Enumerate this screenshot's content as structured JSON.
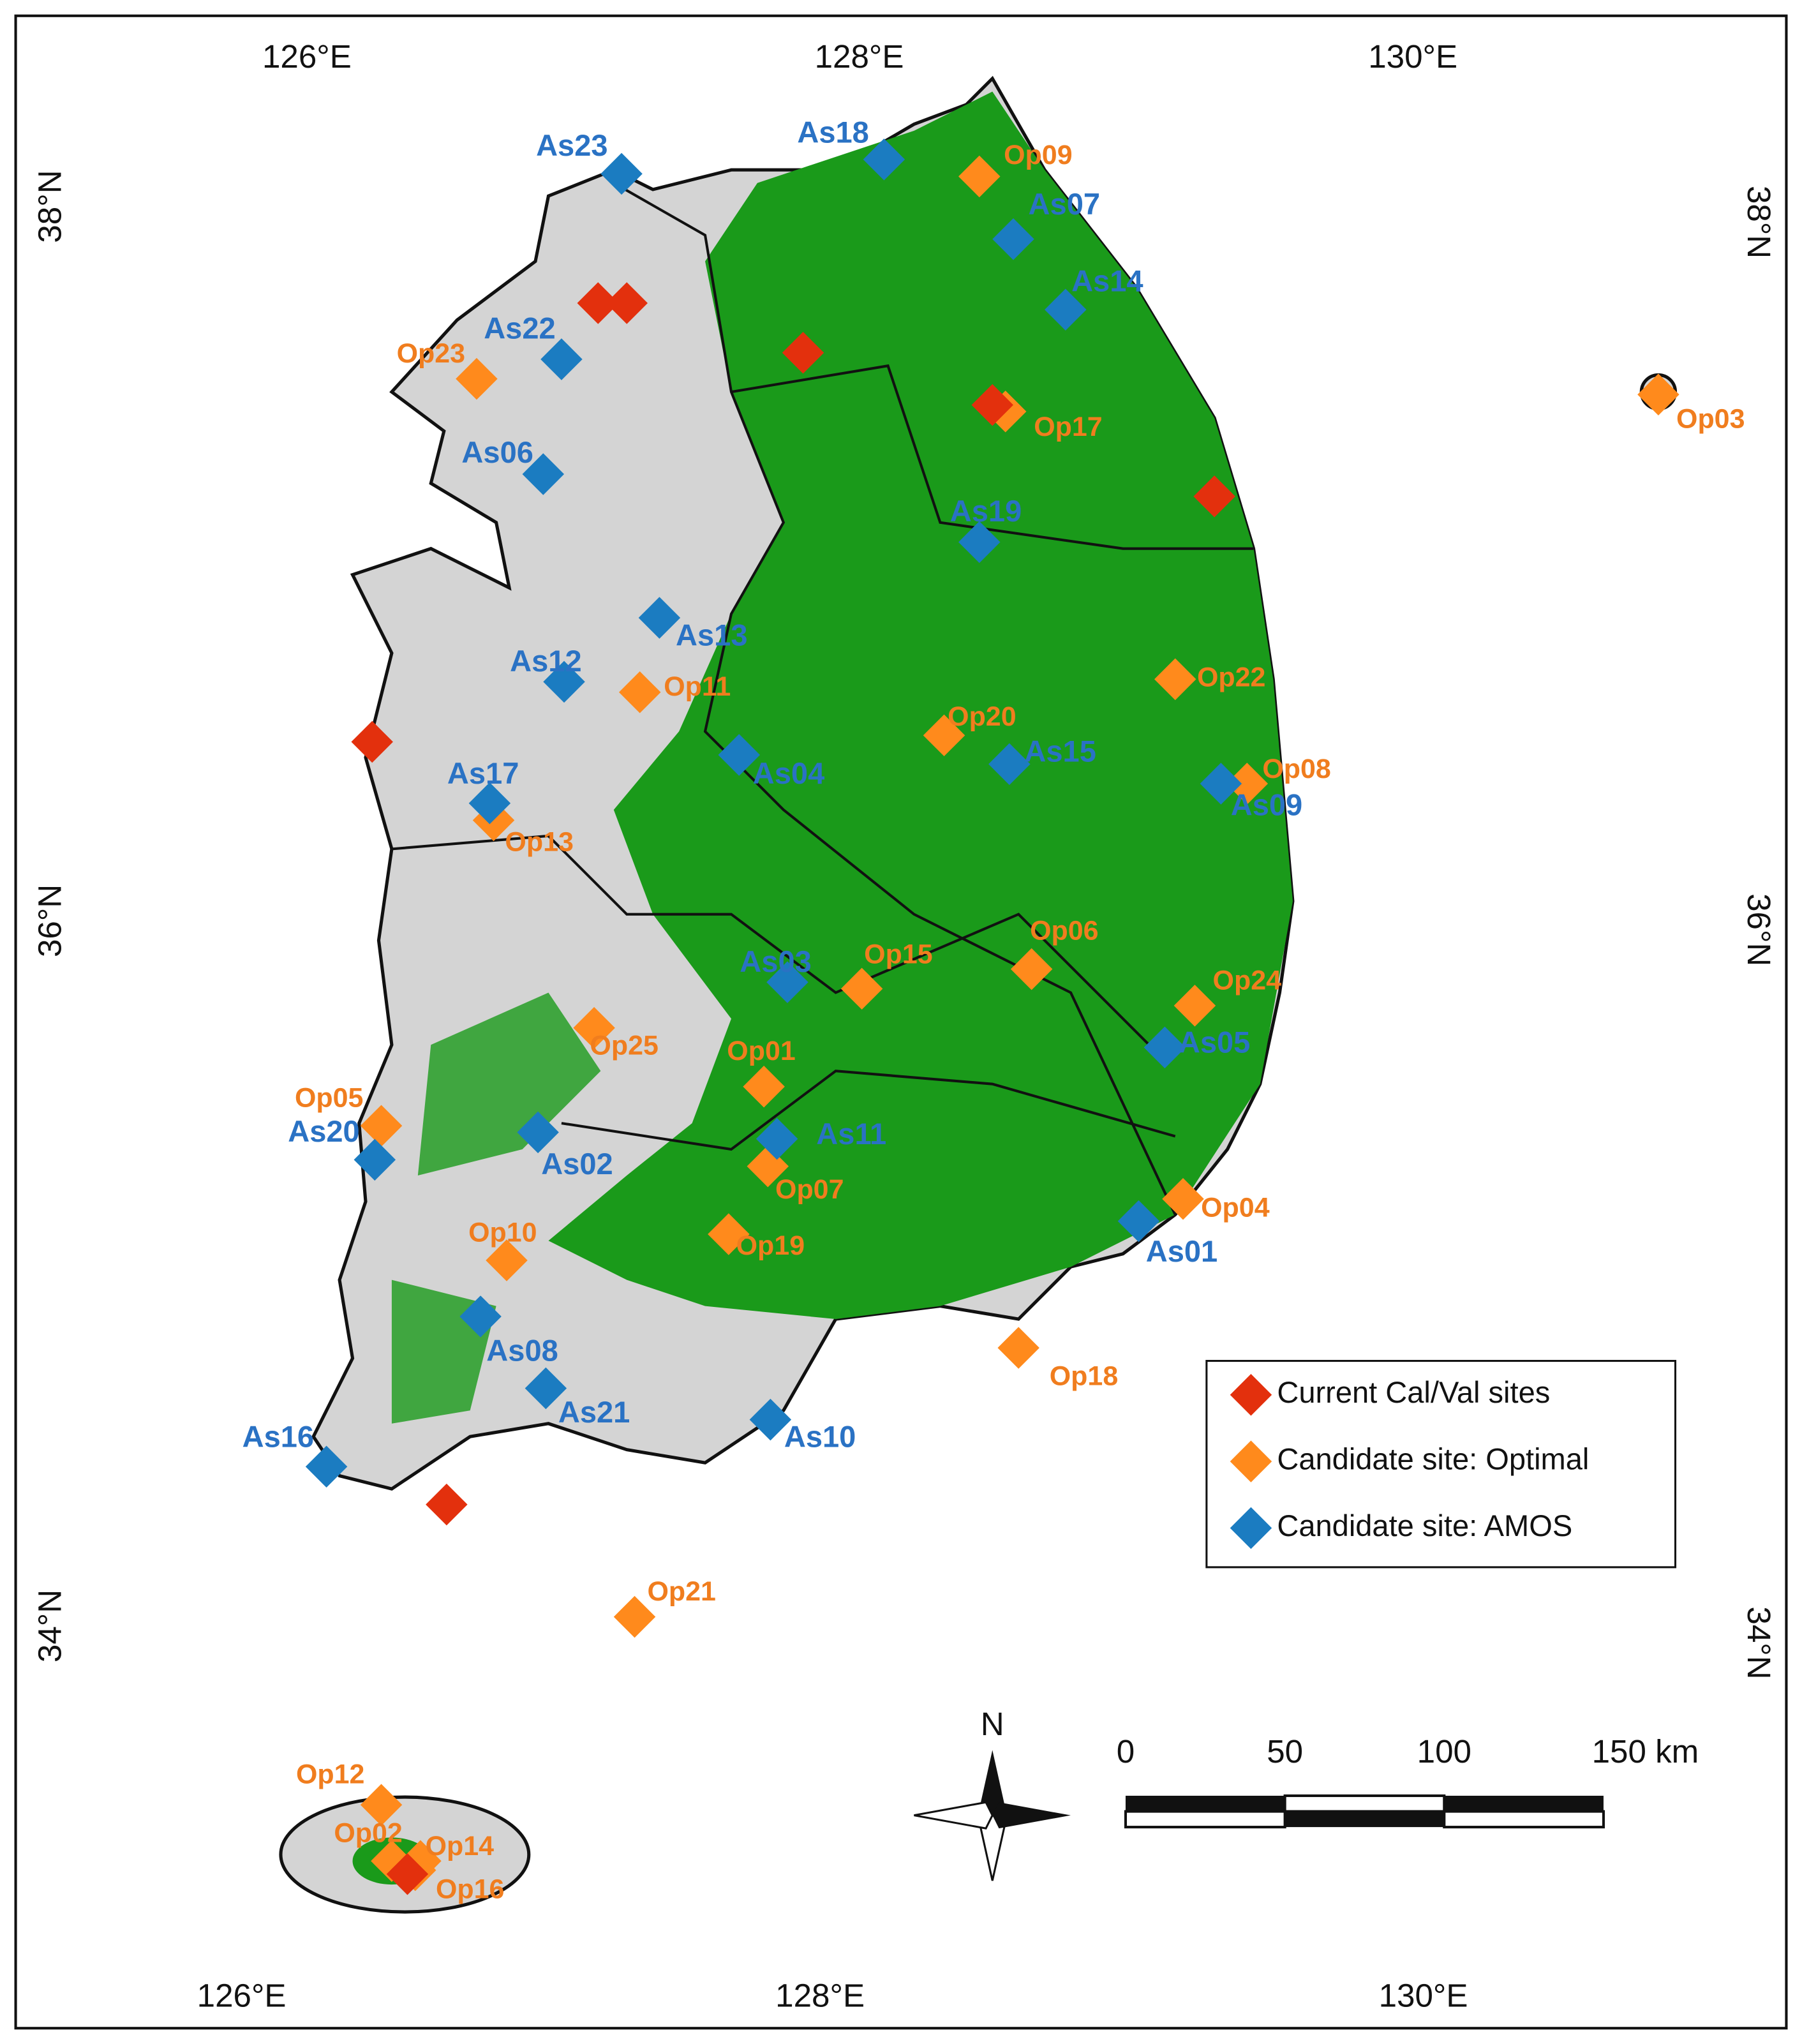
{
  "axes": {
    "top": [
      "126°E",
      "128°E",
      "130°E"
    ],
    "bottom": [
      "126°E",
      "128°E",
      "130°E"
    ],
    "left": [
      "38°N",
      "36°N",
      "34°N"
    ],
    "right": [
      "38°N",
      "36°N",
      "34°N"
    ]
  },
  "legend": [
    {
      "label": "Current Cal/Val sites",
      "color": "#e3300d"
    },
    {
      "label": "Candidate site: Optimal",
      "color": "#ff8a1c",
      "text_color": "#f07d1e"
    },
    {
      "label": "Candidate site: AMOS",
      "color": "#1b7cc1",
      "text_color": "#2a72c4"
    }
  ],
  "optimal_sites": [
    "Op01",
    "Op02",
    "Op03",
    "Op04",
    "Op05",
    "Op06",
    "Op07",
    "Op08",
    "Op09",
    "Op10",
    "Op11",
    "Op12",
    "Op13",
    "Op14",
    "Op15",
    "Op16",
    "Op17",
    "Op18",
    "Op19",
    "Op20",
    "Op21",
    "Op22",
    "Op23",
    "Op24",
    "Op25"
  ],
  "amos_sites": [
    "As01",
    "As02",
    "As03",
    "As04",
    "As05",
    "As06",
    "As07",
    "As08",
    "As09",
    "As10",
    "As11",
    "As12",
    "As13",
    "As14",
    "As15",
    "As16",
    "As17",
    "As18",
    "As19",
    "As20",
    "As21",
    "As22",
    "As23"
  ],
  "north": "N",
  "scale": [
    "0",
    "50",
    "100",
    "150 km"
  ]
}
